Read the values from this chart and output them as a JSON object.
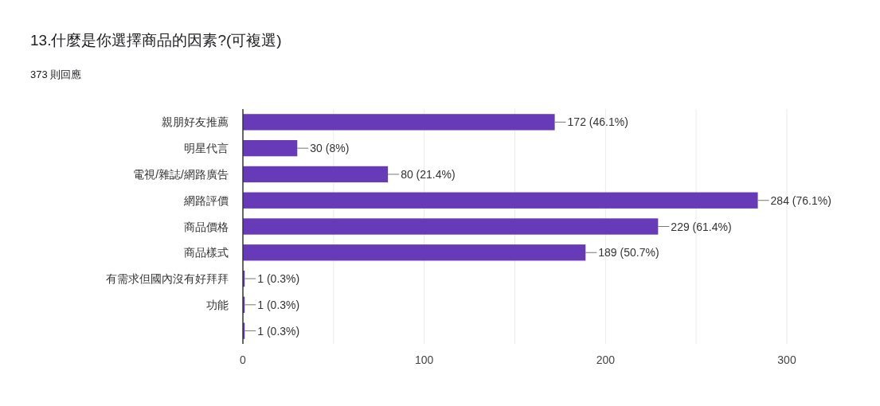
{
  "chart_data": {
    "type": "bar",
    "orientation": "horizontal",
    "title": "13.什麼是你選擇商品的因素?(可複選)",
    "subtitle": "373 則回應",
    "categories": [
      "親朋好友推薦",
      "明星代言",
      "電視/雜誌/網路廣告",
      "網路評價",
      "商品價格",
      "商品樣式",
      "有需求但國內沒有好拜拜",
      "功能",
      null
    ],
    "values": [
      172,
      30,
      80,
      284,
      229,
      189,
      1,
      1,
      1
    ],
    "value_labels": [
      "172 (46.1%)",
      "30 (8%)",
      "80 (21.4%)",
      "284 (76.1%)",
      "229 (61.4%)",
      "189 (50.7%)",
      "1 (0.3%)",
      "1 (0.3%)",
      "1 (0.3%)"
    ],
    "color": "#673ab7",
    "xlim": [
      0,
      300
    ],
    "xticks": [
      0,
      {
        "value": 50,
        "label": null
      },
      100,
      {
        "value": 150,
        "label": null
      },
      200,
      {
        "value": 250,
        "label": null
      },
      300
    ],
    "grid": "x"
  }
}
